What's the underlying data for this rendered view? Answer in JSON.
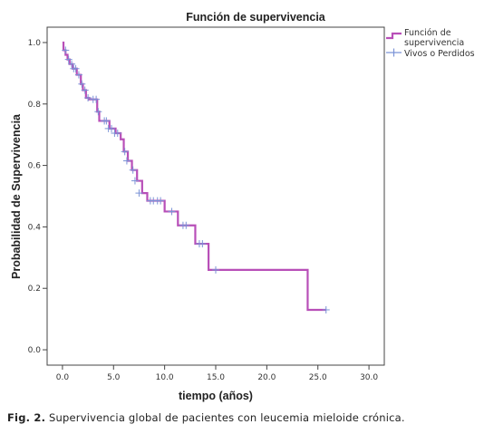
{
  "chart_data": {
    "type": "line",
    "title": "Función de supervivencia",
    "xlabel": "tiempo (años)",
    "ylabel": "Probabilidad de Supervivencia",
    "xlim": [
      -1.5,
      31.5
    ],
    "ylim": [
      -0.05,
      1.05
    ],
    "x_ticks": [
      0,
      5,
      10,
      15,
      20,
      25,
      30
    ],
    "x_tick_labels": [
      "0.0",
      "5.0",
      "10.0",
      "15.0",
      "20.0",
      "25.0",
      "30.0"
    ],
    "y_ticks": [
      0,
      0.2,
      0.4,
      0.6,
      0.8,
      1.0
    ],
    "y_tick_labels": [
      "0.0",
      "0.2",
      "0.4",
      "0.6",
      "0.8",
      "1.0"
    ],
    "grid": false,
    "legend_position": "right-top",
    "colors": {
      "survival": "#b84fb8",
      "censored": "#7b93d6"
    },
    "series": [
      {
        "name": "Función de supervivencia",
        "step": true,
        "x": [
          0,
          0.1,
          0.3,
          0.5,
          0.7,
          1.0,
          1.4,
          1.8,
          2.0,
          2.3,
          2.6,
          3.4,
          3.6,
          4.6,
          5.2,
          5.7,
          6.0,
          6.4,
          6.8,
          7.3,
          7.8,
          8.3,
          10.0,
          11.3,
          13.0,
          14.3,
          24.0,
          25.8
        ],
        "y": [
          1.0,
          0.975,
          0.96,
          0.945,
          0.93,
          0.915,
          0.895,
          0.865,
          0.845,
          0.82,
          0.815,
          0.775,
          0.745,
          0.72,
          0.705,
          0.685,
          0.645,
          0.615,
          0.585,
          0.55,
          0.51,
          0.485,
          0.45,
          0.405,
          0.345,
          0.26,
          0.13,
          0.13
        ]
      },
      {
        "name": "Vivos o Perdidos",
        "x": [
          0.3,
          0.6,
          0.9,
          1.1,
          1.3,
          1.6,
          1.9,
          2.2,
          2.5,
          3.0,
          3.3,
          3.5,
          4.1,
          4.3,
          4.5,
          4.8,
          5.1,
          5.4,
          6.1,
          6.3,
          6.9,
          7.1,
          7.5,
          8.6,
          8.9,
          9.3,
          9.6,
          10.7,
          11.8,
          12.1,
          13.4,
          13.7,
          15.0,
          25.8
        ],
        "y": [
          0.975,
          0.945,
          0.93,
          0.915,
          0.915,
          0.895,
          0.865,
          0.845,
          0.82,
          0.815,
          0.815,
          0.775,
          0.745,
          0.745,
          0.72,
          0.72,
          0.705,
          0.705,
          0.645,
          0.615,
          0.585,
          0.55,
          0.51,
          0.485,
          0.485,
          0.485,
          0.485,
          0.45,
          0.405,
          0.405,
          0.345,
          0.345,
          0.26,
          0.13
        ]
      }
    ]
  },
  "caption": {
    "label": "Fig. 2.",
    "text": "Supervivencia global de pacientes con leucemia mieloide crónica."
  }
}
